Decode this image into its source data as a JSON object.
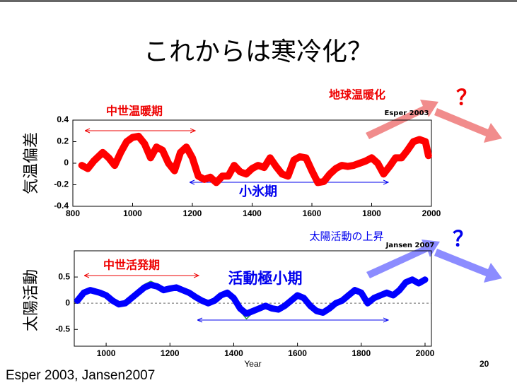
{
  "title": "これからは寒冷化？",
  "footer": "Esper 2003, Jansen2007",
  "page_number": "20",
  "chart_data": [
    {
      "type": "line",
      "y_label": "気温偏差",
      "annotations": [
        "中世温暖期",
        "小氷期",
        "地球温暖化",
        "Esper 2003",
        "？"
      ],
      "xlim": [
        800,
        2000
      ],
      "xticks": [
        800,
        1000,
        1200,
        1400,
        1600,
        1800,
        2000
      ],
      "ylim": [
        -0.4,
        0.4
      ],
      "yticks": [
        -0.4,
        -0.2,
        0,
        0.2,
        0.4
      ],
      "grid": false,
      "zero_line": false,
      "x": [
        830,
        850,
        870,
        900,
        920,
        940,
        960,
        980,
        1000,
        1020,
        1040,
        1060,
        1080,
        1100,
        1120,
        1140,
        1160,
        1180,
        1200,
        1220,
        1240,
        1260,
        1280,
        1300,
        1320,
        1340,
        1360,
        1380,
        1400,
        1420,
        1440,
        1460,
        1480,
        1500,
        1520,
        1540,
        1560,
        1580,
        1600,
        1620,
        1640,
        1660,
        1680,
        1700,
        1720,
        1740,
        1760,
        1780,
        1800,
        1820,
        1840,
        1860,
        1880,
        1900,
        1920,
        1940,
        1960,
        1980,
        1990
      ],
      "series": [
        {
          "color": "#ff0000",
          "width": 10,
          "values": [
            -0.02,
            -0.05,
            0.02,
            0.1,
            0.05,
            -0.02,
            0.1,
            0.2,
            0.24,
            0.25,
            0.18,
            0.05,
            0.15,
            0.12,
            0.0,
            -0.07,
            0.1,
            0.15,
            0.05,
            -0.12,
            -0.15,
            -0.13,
            -0.18,
            -0.12,
            -0.12,
            -0.02,
            -0.08,
            -0.1,
            -0.05,
            -0.02,
            -0.04,
            0.05,
            -0.03,
            -0.1,
            -0.12,
            0.03,
            0.06,
            0.05,
            -0.07,
            -0.18,
            -0.17,
            -0.1,
            -0.05,
            -0.02,
            -0.03,
            -0.02,
            0.0,
            0.02,
            0.05,
            0.0,
            -0.1,
            -0.03,
            0.05,
            0.05,
            0.12,
            0.2,
            0.22,
            0.2,
            0.07
          ]
        }
      ]
    },
    {
      "type": "line",
      "y_label": "太陽活動",
      "x_label": "Year",
      "annotations": [
        "中世活発期",
        "活動極小期",
        "太陽活動の上昇",
        "Jansen 2007",
        "？"
      ],
      "xlim": [
        900,
        2020
      ],
      "xticks": [
        1000,
        1200,
        1400,
        1600,
        1800,
        2000
      ],
      "ylim": [
        -0.82,
        1.0
      ],
      "yticks": [
        -0.5,
        0,
        0.5
      ],
      "grid": false,
      "zero_line": true,
      "x": [
        910,
        930,
        950,
        980,
        1000,
        1020,
        1040,
        1060,
        1080,
        1100,
        1120,
        1140,
        1160,
        1180,
        1200,
        1220,
        1240,
        1260,
        1280,
        1300,
        1320,
        1340,
        1360,
        1380,
        1400,
        1420,
        1440,
        1460,
        1480,
        1500,
        1520,
        1540,
        1560,
        1580,
        1600,
        1620,
        1640,
        1660,
        1680,
        1700,
        1720,
        1740,
        1760,
        1780,
        1800,
        1820,
        1840,
        1860,
        1880,
        1900,
        1920,
        1940,
        1960,
        1980,
        2000
      ],
      "series": [
        {
          "color": "#33aa33",
          "width": 1.5,
          "values": [
            0.04,
            0.22,
            0.28,
            0.22,
            0.14,
            0.03,
            -0.06,
            -0.03,
            0.12,
            0.24,
            0.36,
            0.42,
            0.36,
            0.27,
            0.3,
            0.33,
            0.26,
            0.2,
            0.1,
            0.03,
            -0.02,
            0.06,
            0.18,
            0.22,
            0.08,
            -0.15,
            -0.3,
            -0.18,
            -0.12,
            -0.07,
            -0.13,
            -0.16,
            -0.07,
            0.06,
            0.18,
            0.1,
            -0.08,
            -0.2,
            -0.22,
            -0.12,
            0.0,
            0.06,
            0.18,
            0.3,
            0.22,
            -0.02,
            0.1,
            0.16,
            0.22,
            0.14,
            0.27,
            0.44,
            0.5,
            0.4,
            0.48
          ]
        },
        {
          "color": "#0000ff",
          "width": 9,
          "values": [
            0.05,
            0.2,
            0.25,
            0.2,
            0.15,
            0.05,
            -0.02,
            0.0,
            0.1,
            0.2,
            0.3,
            0.35,
            0.32,
            0.25,
            0.28,
            0.3,
            0.25,
            0.2,
            0.12,
            0.05,
            0.0,
            0.05,
            0.15,
            0.2,
            0.1,
            -0.1,
            -0.2,
            -0.15,
            -0.1,
            -0.05,
            -0.1,
            -0.12,
            -0.05,
            0.05,
            0.15,
            0.1,
            -0.05,
            -0.15,
            -0.18,
            -0.1,
            0.0,
            0.05,
            0.15,
            0.25,
            0.2,
            0.0,
            0.1,
            0.15,
            0.2,
            0.15,
            0.25,
            0.4,
            0.45,
            0.38,
            0.45
          ]
        }
      ]
    }
  ]
}
